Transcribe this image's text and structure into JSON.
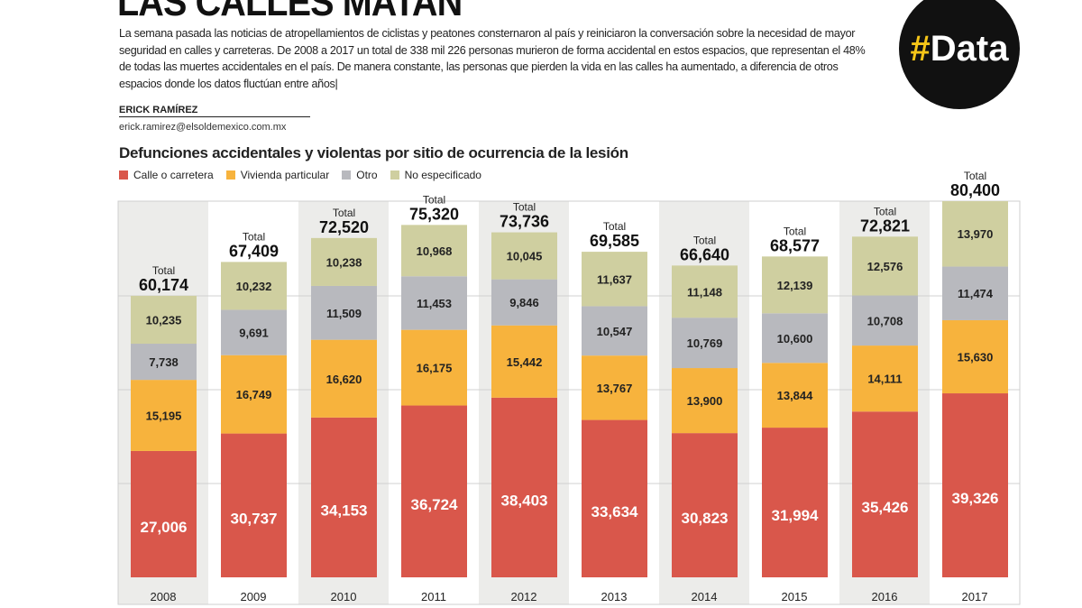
{
  "header": {
    "title": "LAS CALLES MATAN",
    "intro": "La semana pasada las noticias de atropellamientos de ciclistas y peatones consternaron al país y reiniciaron la conversación sobre la necesidad de mayor seguridad en calles y carreteras. De 2008 a 2017 un total de 338 mil 226 personas murieron de forma accidental en estos espacios, que representan el 48% de todas las muertes accidentales en el país. De manera constante, las personas que pierden la vida en las calles ha aumentado, a diferencia de otros espacios donde los datos fluctúan entre años|",
    "author": "ERICK RAMÍREZ",
    "email": "erick.ramirez@elsoldemexico.com.mx",
    "logo": "#Data"
  },
  "chart_data": {
    "type": "bar",
    "stacked": true,
    "title": "Defunciones accidentales y violentas por sitio de ocurrencia de la lesión",
    "total_label": "Total",
    "categories": [
      "2008",
      "2009",
      "2010",
      "2011",
      "2012",
      "2013",
      "2014",
      "2015",
      "2016",
      "2017"
    ],
    "totals": [
      "60,174",
      "67,409",
      "72,520",
      "75,320",
      "73,736",
      "69,585",
      "66,640",
      "68,577",
      "72,821",
      "80,400"
    ],
    "series": [
      {
        "name": "Calle o carretera",
        "color": "#d9574b",
        "values": [
          27006,
          30737,
          34153,
          36724,
          38403,
          33634,
          30823,
          31994,
          35426,
          39326
        ]
      },
      {
        "name": "Vivienda particular",
        "color": "#f7b33d",
        "values": [
          15195,
          16749,
          16620,
          16175,
          15442,
          13767,
          13900,
          13844,
          14111,
          15630
        ]
      },
      {
        "name": "Otro",
        "color": "#b8b9be",
        "values": [
          7738,
          9691,
          11509,
          11453,
          9846,
          10547,
          10769,
          10600,
          10708,
          11474
        ]
      },
      {
        "name": "No especificado",
        "color": "#cfcfa0",
        "values": [
          10235,
          10232,
          10238,
          10968,
          10045,
          11637,
          11148,
          12139,
          12576,
          13970
        ]
      }
    ],
    "ylim": [
      0,
      80400
    ],
    "grid": true,
    "legend": "top-left"
  }
}
